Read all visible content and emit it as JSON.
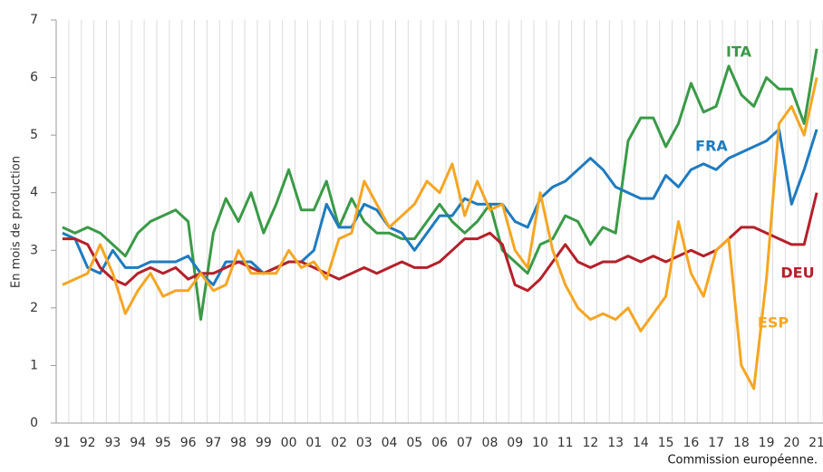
{
  "chart_data": {
    "type": "line",
    "y_label": "En mois de production",
    "source": "Commission européenne.",
    "categories": [
      "91",
      null,
      "92",
      null,
      "93",
      null,
      "94",
      null,
      "95",
      null,
      "96",
      null,
      "97",
      null,
      "98",
      null,
      "99",
      null,
      "00",
      null,
      "01",
      null,
      "02",
      null,
      "03",
      null,
      "04",
      null,
      "05",
      null,
      "06",
      null,
      "07",
      null,
      "08",
      null,
      "09",
      null,
      "10",
      null,
      "11",
      null,
      "12",
      null,
      "13",
      null,
      "14",
      null,
      "15",
      null,
      "16",
      null,
      "17",
      null,
      "18",
      null,
      "19",
      null,
      "20",
      null,
      "21"
    ],
    "ylim": [
      0,
      7
    ],
    "yticks": [
      0,
      1,
      2,
      3,
      4,
      5,
      6,
      7
    ],
    "grid": true,
    "series": [
      {
        "name": "ITA",
        "color": "#3a9a47",
        "values": [
          3.4,
          3.3,
          3.4,
          3.3,
          3.1,
          2.9,
          3.3,
          3.5,
          3.6,
          3.7,
          3.5,
          1.8,
          3.3,
          3.9,
          3.5,
          4.0,
          3.3,
          3.8,
          4.4,
          3.7,
          3.7,
          4.2,
          3.4,
          3.9,
          3.5,
          3.3,
          3.3,
          3.2,
          3.2,
          3.5,
          3.8,
          3.5,
          3.3,
          3.5,
          3.8,
          3.0,
          2.8,
          2.6,
          3.1,
          3.2,
          3.6,
          3.5,
          3.1,
          3.4,
          3.3,
          4.9,
          5.3,
          5.3,
          4.8,
          5.2,
          5.9,
          5.4,
          5.5,
          6.2,
          5.7,
          5.5,
          6.0,
          5.8,
          5.8,
          5.2,
          6.5
        ]
      },
      {
        "name": "FRA",
        "color": "#1f7bbf",
        "values": [
          3.3,
          3.2,
          2.7,
          2.6,
          3.0,
          2.7,
          2.7,
          2.8,
          2.8,
          2.8,
          2.9,
          2.6,
          2.4,
          2.8,
          2.8,
          2.8,
          2.6,
          2.7,
          2.8,
          2.8,
          3.0,
          3.8,
          3.4,
          3.4,
          3.8,
          3.7,
          3.4,
          3.3,
          3.0,
          3.3,
          3.6,
          3.6,
          3.9,
          3.8,
          3.8,
          3.8,
          3.5,
          3.4,
          3.9,
          4.1,
          4.2,
          4.4,
          4.6,
          4.4,
          4.1,
          4.0,
          3.9,
          3.9,
          4.3,
          4.1,
          4.4,
          4.5,
          4.4,
          4.6,
          4.7,
          4.8,
          4.9,
          5.1,
          3.8,
          4.4,
          5.1
        ]
      },
      {
        "name": "DEU",
        "color": "#b5202a",
        "values": [
          3.2,
          3.2,
          3.1,
          2.7,
          2.5,
          2.4,
          2.6,
          2.7,
          2.6,
          2.7,
          2.5,
          2.6,
          2.6,
          2.7,
          2.8,
          2.7,
          2.6,
          2.7,
          2.8,
          2.8,
          2.7,
          2.6,
          2.5,
          2.6,
          2.7,
          2.6,
          2.7,
          2.8,
          2.7,
          2.7,
          2.8,
          3.0,
          3.2,
          3.2,
          3.3,
          3.1,
          2.4,
          2.3,
          2.5,
          2.8,
          3.1,
          2.8,
          2.7,
          2.8,
          2.8,
          2.9,
          2.8,
          2.9,
          2.8,
          2.9,
          3.0,
          2.9,
          3.0,
          3.2,
          3.4,
          3.4,
          3.3,
          3.2,
          3.1,
          3.1,
          4.0
        ]
      },
      {
        "name": "ESP",
        "color": "#f5a623",
        "values": [
          2.4,
          2.5,
          2.6,
          3.1,
          2.6,
          1.9,
          2.3,
          2.6,
          2.2,
          2.3,
          2.3,
          2.6,
          2.3,
          2.4,
          3.0,
          2.6,
          2.6,
          2.6,
          3.0,
          2.7,
          2.8,
          2.5,
          3.2,
          3.3,
          4.2,
          3.8,
          3.4,
          3.6,
          3.8,
          4.2,
          4.0,
          4.5,
          3.6,
          4.2,
          3.7,
          3.8,
          3.0,
          2.7,
          4.0,
          3.0,
          2.4,
          2.0,
          1.8,
          1.9,
          1.8,
          2.0,
          1.6,
          1.9,
          2.2,
          3.5,
          2.6,
          2.2,
          3.0,
          3.2,
          1.0,
          0.6,
          2.5,
          5.2,
          5.5,
          5.0,
          6.0
        ]
      }
    ]
  }
}
